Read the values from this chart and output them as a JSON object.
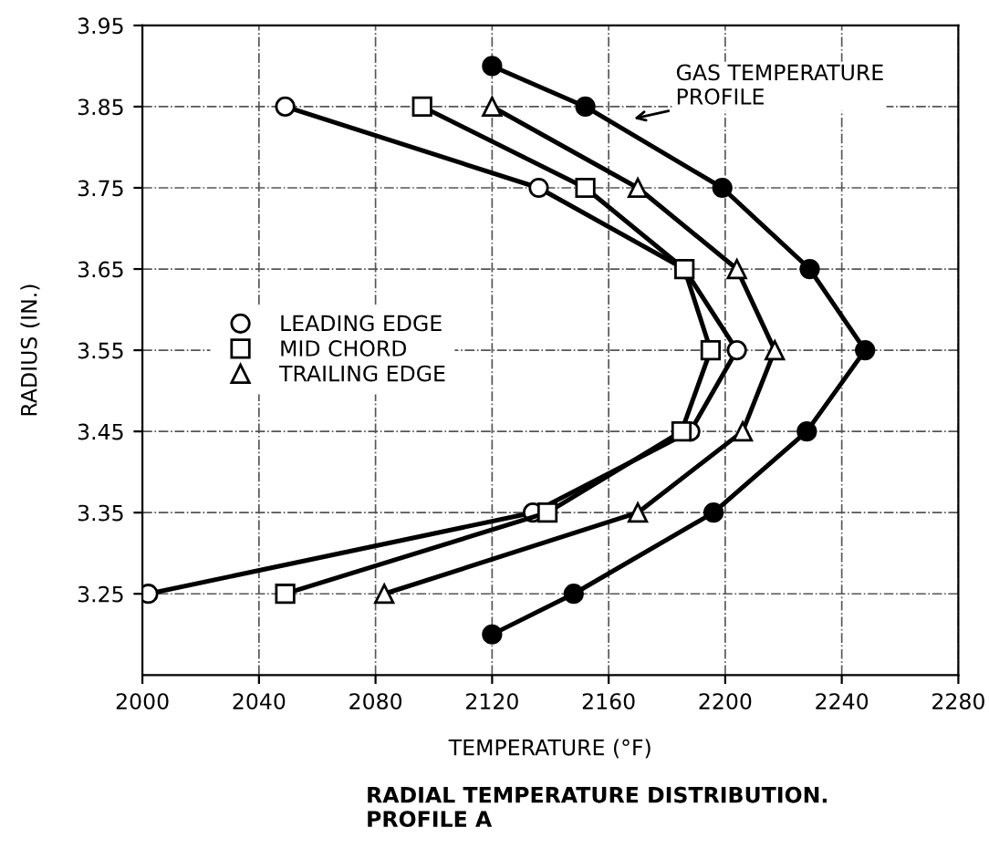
{
  "chart_data": {
    "type": "line",
    "xlabel": "TEMPERATURE (°F)",
    "ylabel": "RADIUS (IN.)",
    "xlim": [
      2000,
      2280
    ],
    "xticks": [
      2000,
      2040,
      2080,
      2120,
      2160,
      2200,
      2240,
      2280
    ],
    "ylim": [
      3.15,
      3.95
    ],
    "yticks": [
      3.25,
      3.35,
      3.45,
      3.55,
      3.65,
      3.75,
      3.85,
      3.95
    ],
    "grid": true,
    "legend": "center left",
    "series": [
      {
        "name": "LEADING EDGE",
        "color": "#000000",
        "marker": "circle",
        "x": [
          2049,
          2136,
          2186,
          2204,
          2188,
          2134,
          2002
        ],
        "values": [
          3.85,
          3.75,
          3.65,
          3.55,
          3.45,
          3.35,
          3.25
        ]
      },
      {
        "name": "MID CHORD",
        "color": "#000000",
        "marker": "square",
        "x": [
          2096,
          2152,
          2186,
          2195,
          2185,
          2139,
          2049
        ],
        "values": [
          3.85,
          3.75,
          3.65,
          3.55,
          3.45,
          3.35,
          3.25
        ]
      },
      {
        "name": "TRAILING EDGE",
        "color": "#000000",
        "marker": "triangle",
        "x": [
          2120,
          2170,
          2204,
          2217,
          2206,
          2170,
          2083
        ],
        "values": [
          3.85,
          3.75,
          3.65,
          3.55,
          3.45,
          3.35,
          3.25
        ]
      },
      {
        "color": "#000000",
        "marker": "circle",
        "x": [
          2120,
          2152,
          2199,
          2229,
          2248,
          2228,
          2196,
          2148,
          2120
        ],
        "values": [
          3.9,
          3.85,
          3.75,
          3.65,
          3.55,
          3.45,
          3.35,
          3.25,
          3.2
        ]
      }
    ],
    "annotations": [
      {
        "text": "GAS TEMPERATURE\nPROFILE",
        "x": 2167,
        "y": 3.834
      },
      "RADIAL TEMPERATURE DISTRIBUTION.\nPROFILE A"
    ]
  }
}
